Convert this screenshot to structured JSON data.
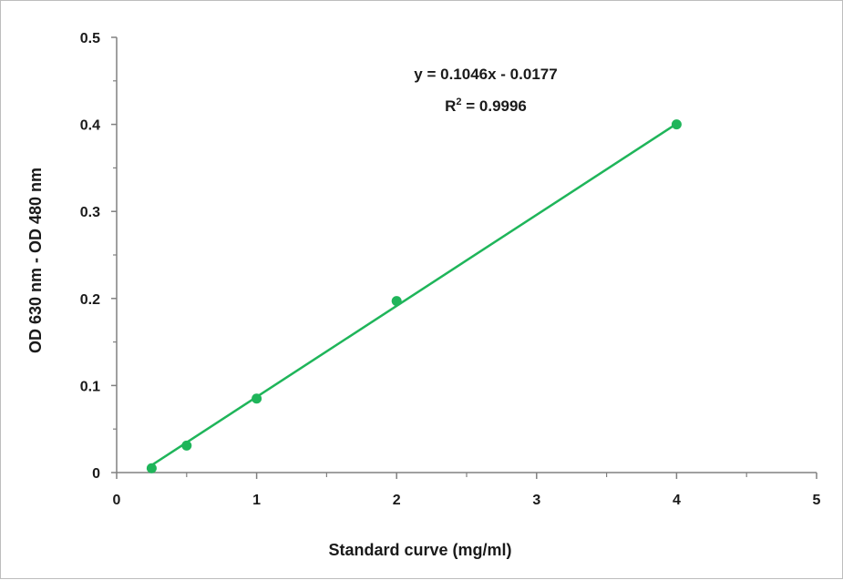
{
  "chart_data": {
    "type": "scatter",
    "xlabel": "Standard curve (mg/ml)",
    "ylabel": "OD 630 nm - OD 480 nm",
    "xlim": [
      0,
      5
    ],
    "ylim": [
      0,
      0.5
    ],
    "x_ticks": [
      "0",
      "1",
      "2",
      "3",
      "4",
      "5"
    ],
    "y_ticks": [
      "0",
      "0.1",
      "0.2",
      "0.3",
      "0.4",
      "0.5"
    ],
    "grid": false,
    "series": [
      {
        "x": [
          0.25,
          0.5,
          1,
          2,
          4
        ],
        "y": [
          0.005,
          0.031,
          0.085,
          0.197,
          0.4
        ],
        "color": "#1fb55a"
      }
    ],
    "trendline": {
      "type": "linear",
      "slope": 0.1046,
      "intercept": -0.0177,
      "color": "#1fb55a"
    },
    "annotations": {
      "equation": "y = 0.1046x - 0.0177",
      "r2_prefix": "R",
      "r2_sup": "2",
      "r2_suffix": " = 0.9996"
    }
  }
}
